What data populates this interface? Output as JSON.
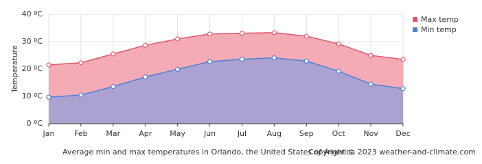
{
  "chart_data": {
    "type": "area",
    "y_label": "Temperature",
    "categories": [
      "Jan",
      "Feb",
      "Mar",
      "Apr",
      "May",
      "Jun",
      "Jul",
      "Aug",
      "Sep",
      "Oct",
      "Nov",
      "Dec"
    ],
    "series": [
      {
        "name": "Max temp",
        "color": "#e0566a",
        "fill": "#f5abb6",
        "values": [
          21.5,
          22.3,
          25.5,
          28.7,
          31.0,
          32.8,
          33.1,
          33.3,
          32.0,
          29.2,
          25.0,
          23.5
        ]
      },
      {
        "name": "Min temp",
        "color": "#4a80d8",
        "fill": "#aba2d1",
        "values": [
          9.7,
          10.5,
          13.6,
          17.1,
          19.9,
          22.7,
          23.6,
          24.1,
          22.9,
          19.2,
          14.5,
          12.8
        ]
      }
    ],
    "ylim": [
      0,
      40
    ],
    "yticks": [
      {
        "value": 0,
        "label": "0 ºC"
      },
      {
        "value": 10,
        "label": "10 ºC"
      },
      {
        "value": 20,
        "label": "20 ºC"
      },
      {
        "value": 30,
        "label": "30 ºC"
      },
      {
        "value": 40,
        "label": "40 ºC"
      }
    ],
    "grid": true,
    "legend": "top-right",
    "footer": "Average min and max temperatures in Orlando, the United States of America",
    "copyright": "Copyright © 2023  weather-and-climate.com"
  }
}
